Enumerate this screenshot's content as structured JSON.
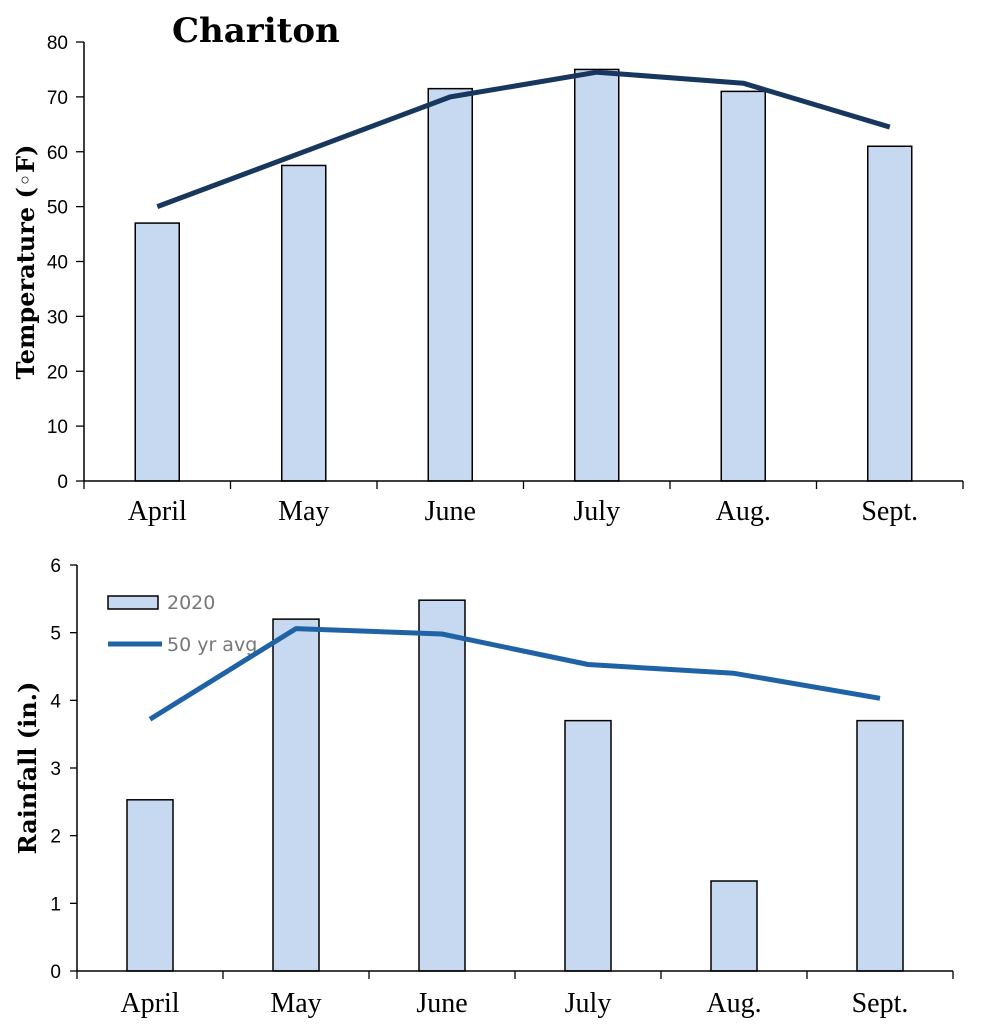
{
  "colors": {
    "bar_fill": "#c6d9f1",
    "bar_stroke": "#000000",
    "temp_line": "#17375e",
    "rain_line": "#1f63a6"
  },
  "chart_data": [
    {
      "type": "bar",
      "title": "Chariton",
      "ylabel": "Temperature (◦F)",
      "ylim": [
        0,
        80
      ],
      "yticks": [
        "0",
        "10",
        "20",
        "30",
        "40",
        "50",
        "60",
        "70",
        "80"
      ],
      "categories": [
        "April",
        "May",
        "June",
        "July",
        "Aug.",
        "Sept."
      ],
      "series": [
        {
          "type": "bar",
          "values": [
            47,
            57.5,
            71.5,
            75,
            71,
            61
          ]
        },
        {
          "type": "line",
          "values": [
            50,
            60,
            70,
            74.5,
            72.5,
            64.5
          ]
        }
      ]
    },
    {
      "type": "bar",
      "ylabel": "Rainfall (in.)",
      "ylim": [
        0,
        6
      ],
      "yticks": [
        "0",
        "1",
        "2",
        "3",
        "4",
        "5",
        "6"
      ],
      "categories": [
        "April",
        "May",
        "June",
        "July",
        "Aug.",
        "Sept."
      ],
      "legend_position": "top-left",
      "series": [
        {
          "type": "bar",
          "name": "2020",
          "values": [
            2.53,
            5.2,
            5.48,
            3.7,
            1.33,
            3.7
          ]
        },
        {
          "type": "line",
          "name": "50 yr avg.",
          "values": [
            3.72,
            5.06,
            4.98,
            4.53,
            4.4,
            4.03
          ]
        }
      ]
    }
  ]
}
